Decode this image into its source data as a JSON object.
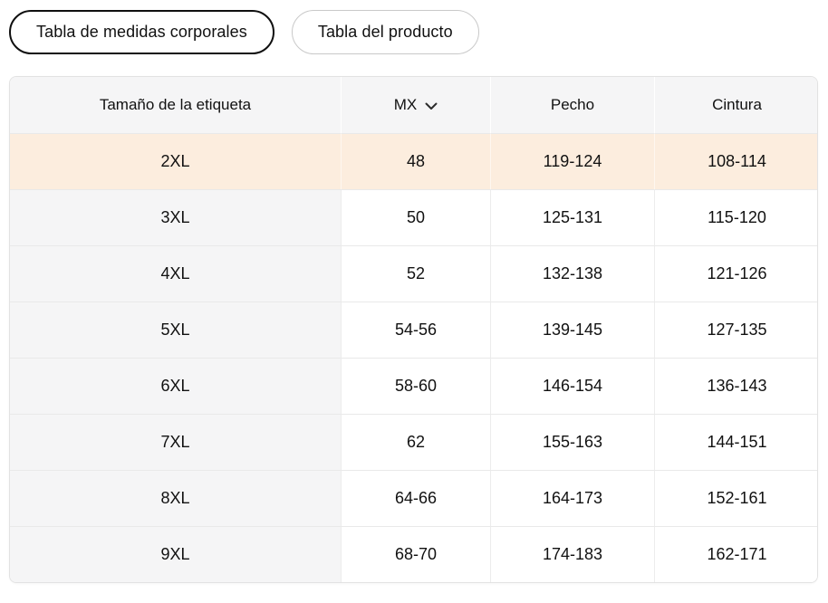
{
  "tabs": [
    {
      "label": "Tabla de medidas corporales",
      "active": true
    },
    {
      "label": "Tabla del producto",
      "active": false
    }
  ],
  "table": {
    "columns": {
      "size": "Tamaño de la etiqueta",
      "region": "MX",
      "chest": "Pecho",
      "waist": "Cintura"
    },
    "region_selector": {
      "value": "MX",
      "icon": "chevron-down"
    },
    "rows": [
      {
        "size": "2XL",
        "mx": "48",
        "pecho": "119-124",
        "cintura": "108-114",
        "highlighted": true
      },
      {
        "size": "3XL",
        "mx": "50",
        "pecho": "125-131",
        "cintura": "115-120",
        "highlighted": false
      },
      {
        "size": "4XL",
        "mx": "52",
        "pecho": "132-138",
        "cintura": "121-126",
        "highlighted": false
      },
      {
        "size": "5XL",
        "mx": "54-56",
        "pecho": "139-145",
        "cintura": "127-135",
        "highlighted": false
      },
      {
        "size": "6XL",
        "mx": "58-60",
        "pecho": "146-154",
        "cintura": "136-143",
        "highlighted": false
      },
      {
        "size": "7XL",
        "mx": "62",
        "pecho": "155-163",
        "cintura": "144-151",
        "highlighted": false
      },
      {
        "size": "8XL",
        "mx": "64-66",
        "pecho": "164-173",
        "cintura": "152-161",
        "highlighted": false
      },
      {
        "size": "9XL",
        "mx": "68-70",
        "pecho": "174-183",
        "cintura": "162-171",
        "highlighted": false
      }
    ],
    "colors": {
      "highlight_row_bg": "#fcedde",
      "header_bg": "#f5f5f6",
      "first_column_bg": "#f5f5f6",
      "active_tab_border": "#0f0f0f",
      "inactive_tab_border": "#c9c9c9"
    }
  }
}
